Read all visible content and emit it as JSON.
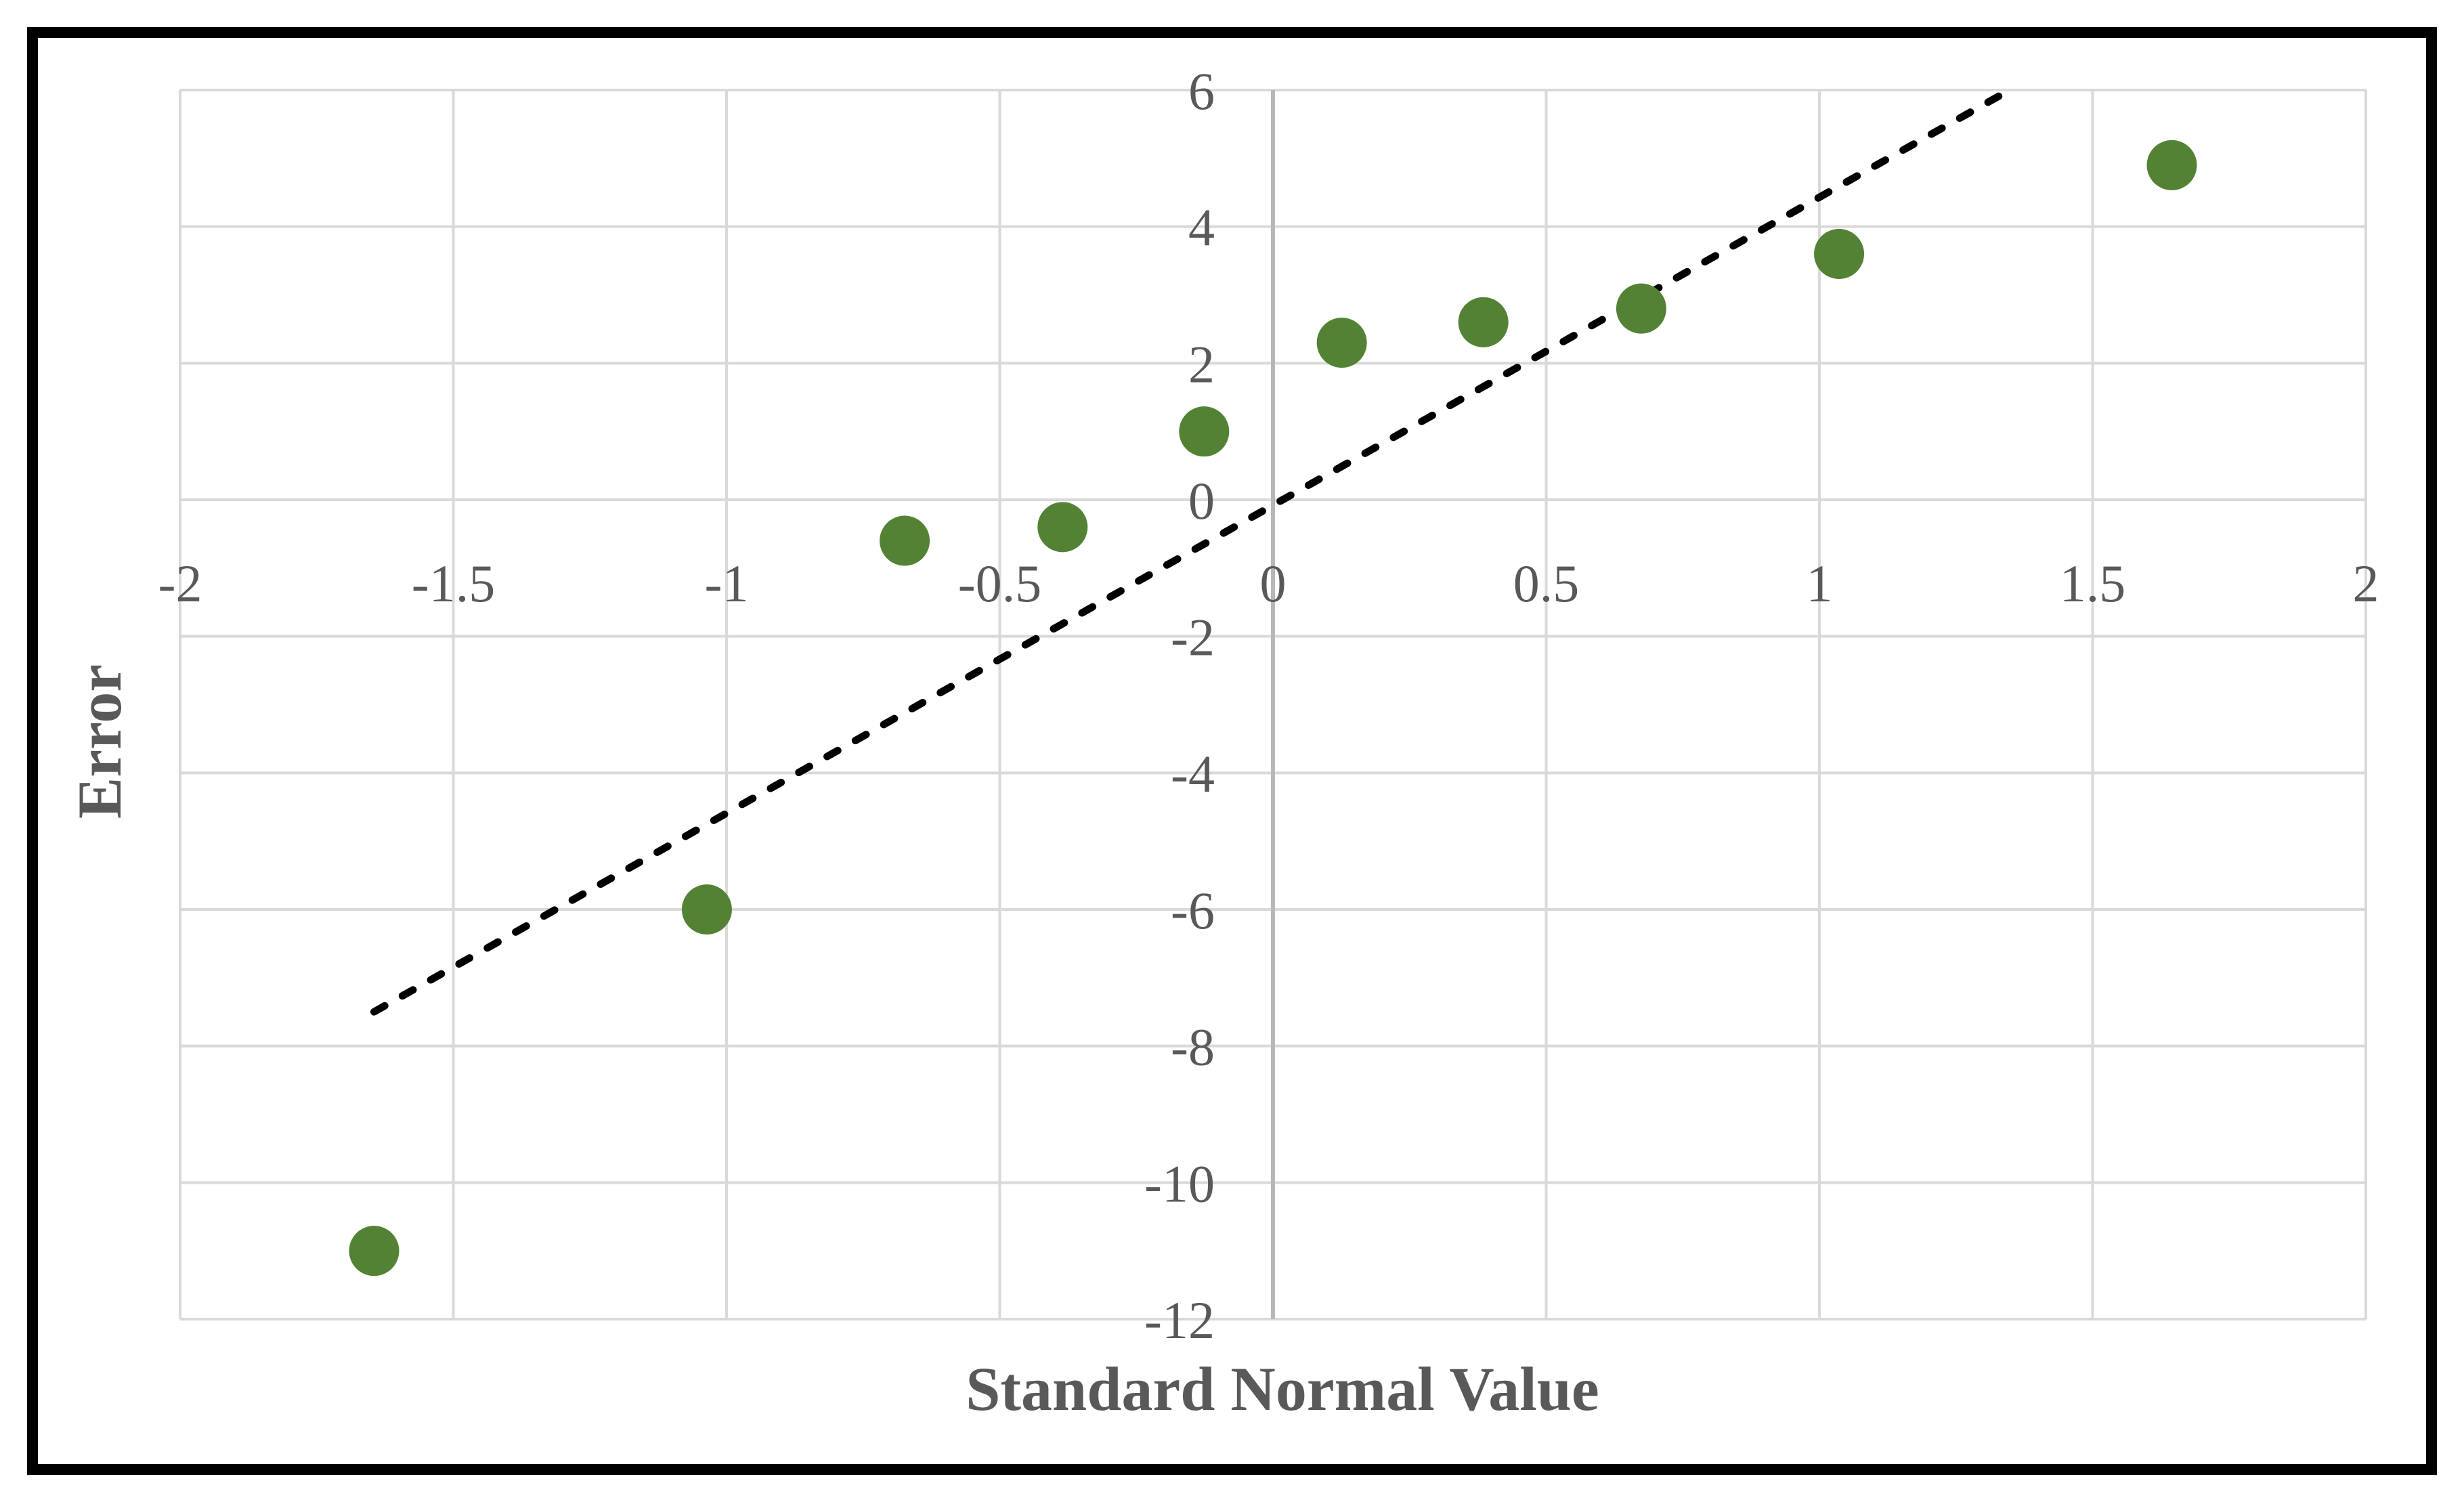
{
  "chart_data": {
    "type": "scatter",
    "title": "",
    "xlabel": "Standard Normal Value",
    "ylabel": "Error",
    "x_axis": {
      "min": -2,
      "max": 2,
      "step": 0.5,
      "tick_labels": [
        "-2",
        "-1.5",
        "-1",
        "-0.5",
        "0",
        "0.5",
        "1",
        "1.5",
        "2"
      ]
    },
    "y_axis": {
      "min": -12,
      "max": 6,
      "step": 2,
      "tick_labels": [
        "6",
        "4",
        "2",
        "0",
        "-2",
        "-4",
        "-6",
        "-8",
        "-10",
        "-12"
      ]
    },
    "series": [
      {
        "name": "Error",
        "marker": "circle",
        "points": [
          [
            -1.645,
            -11.0
          ],
          [
            -1.036,
            -6.0
          ],
          [
            -0.674,
            -0.6
          ],
          [
            -0.385,
            -0.4
          ],
          [
            -0.126,
            1.0
          ],
          [
            0.126,
            2.3
          ],
          [
            0.385,
            2.6
          ],
          [
            0.674,
            2.8
          ],
          [
            1.036,
            3.6
          ],
          [
            1.645,
            4.9
          ]
        ]
      }
    ],
    "trendline": {
      "style": "dashed",
      "slope": 4.51,
      "intercept": -0.08,
      "x_start": -1.645,
      "x_end": 1.645,
      "clip_y_max": 6
    },
    "grid": true,
    "legend": false
  },
  "colors": {
    "marker": "#548235",
    "trendline": "#000000",
    "gridline": "#d9d9d9",
    "axis_line": "#b7b7b7",
    "tick_label": "#595959",
    "axis_title": "#595959",
    "frame_border": "#000000",
    "background": "#ffffff"
  }
}
